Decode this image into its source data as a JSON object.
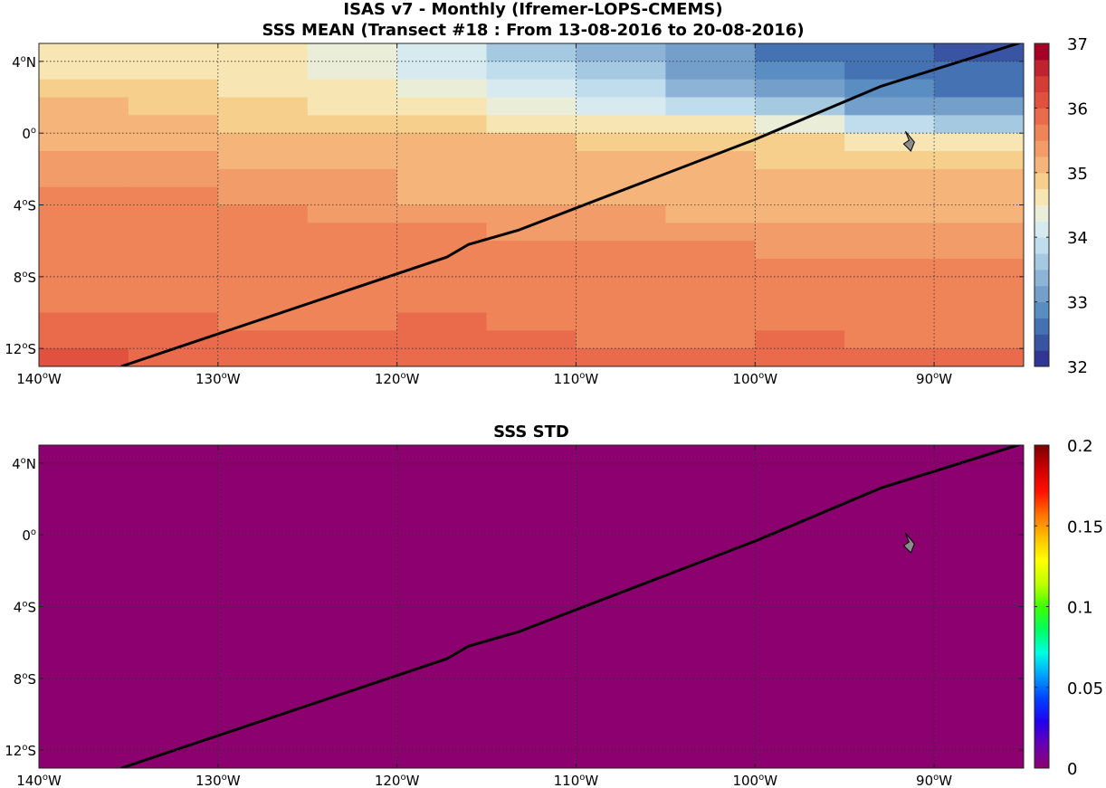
{
  "figure": {
    "title_line1": "ISAS v7 - Monthly (Ifremer-LOPS-CMEMS)"
  },
  "chart_data": [
    {
      "type": "heatmap",
      "title": "SSS MEAN (Transect #18 : From 13-08-2016 to 20-08-2016)",
      "xlabel": "",
      "ylabel": "",
      "xlim": [
        -140,
        -85
      ],
      "ylim": [
        -13,
        5
      ],
      "x_ticks": [
        {
          "value": -140,
          "deg": "140",
          "hemi": "W"
        },
        {
          "value": -130,
          "deg": "130",
          "hemi": "W"
        },
        {
          "value": -120,
          "deg": "120",
          "hemi": "W"
        },
        {
          "value": -110,
          "deg": "110",
          "hemi": "W"
        },
        {
          "value": -100,
          "deg": "100",
          "hemi": "W"
        },
        {
          "value": -90,
          "deg": "90",
          "hemi": "W"
        }
      ],
      "y_ticks": [
        {
          "value": 4,
          "deg": "4",
          "hemi": "N"
        },
        {
          "value": 0,
          "deg": "0",
          "hemi": ""
        },
        {
          "value": -4,
          "deg": "4",
          "hemi": "S"
        },
        {
          "value": -8,
          "deg": "8",
          "hemi": "S"
        },
        {
          "value": -12,
          "deg": "12",
          "hemi": "S"
        }
      ],
      "grid": true,
      "colorbar": {
        "min": 32,
        "max": 37,
        "levels": 20,
        "ticks": [
          {
            "value": 32,
            "label": "32"
          },
          {
            "value": 33,
            "label": "33"
          },
          {
            "value": 34,
            "label": "34"
          },
          {
            "value": 35,
            "label": "35"
          },
          {
            "value": 36,
            "label": "36"
          },
          {
            "value": 37,
            "label": "37"
          }
        ],
        "colors": [
          "#313695",
          "#3a54a4",
          "#4472b3",
          "#5a8dc1",
          "#749fcb",
          "#8db4d6",
          "#a6c9e2",
          "#c0dded",
          "#d7eaef",
          "#eaeed9",
          "#f7e5b3",
          "#f6cf8c",
          "#f4b47a",
          "#f29c6a",
          "#ee8458",
          "#e96b4c",
          "#e0523f",
          "#d43d35",
          "#c0232f",
          "#a50026"
        ]
      },
      "rows": [
        {
          "lat": 4.5,
          "values": [
            34.6,
            34.6,
            34.5,
            34.3,
            34.0,
            33.6,
            33.3,
            33.0,
            32.7,
            32.5,
            32.4
          ]
        },
        {
          "lat": 3.5,
          "values": [
            34.7,
            34.7,
            34.6,
            34.4,
            34.2,
            33.9,
            33.6,
            33.2,
            32.9,
            32.6,
            32.5
          ]
        },
        {
          "lat": 2.5,
          "values": [
            34.9,
            34.8,
            34.7,
            34.6,
            34.4,
            34.1,
            33.8,
            33.4,
            33.0,
            32.8,
            32.7
          ]
        },
        {
          "lat": 1.5,
          "values": [
            35.0,
            34.9,
            34.8,
            34.7,
            34.6,
            34.4,
            34.2,
            33.9,
            33.5,
            33.2,
            33.1
          ]
        },
        {
          "lat": 0.5,
          "values": [
            35.1,
            35.0,
            34.9,
            34.9,
            34.8,
            34.7,
            34.6,
            34.5,
            34.3,
            33.9,
            33.7
          ]
        },
        {
          "lat": -0.5,
          "values": [
            35.2,
            35.2,
            35.1,
            35.1,
            35.0,
            35.0,
            34.9,
            34.9,
            34.8,
            34.7,
            34.6
          ]
        },
        {
          "lat": -1.5,
          "values": [
            35.3,
            35.3,
            35.2,
            35.2,
            35.1,
            35.1,
            35.0,
            35.0,
            34.9,
            34.9,
            34.9
          ]
        },
        {
          "lat": -2.5,
          "values": [
            35.4,
            35.4,
            35.3,
            35.3,
            35.2,
            35.2,
            35.1,
            35.1,
            35.0,
            35.0,
            35.0
          ]
        },
        {
          "lat": -3.5,
          "values": [
            35.5,
            35.5,
            35.4,
            35.3,
            35.2,
            35.2,
            35.2,
            35.1,
            35.1,
            35.1,
            35.1
          ]
        },
        {
          "lat": -4.5,
          "values": [
            35.5,
            35.5,
            35.5,
            35.4,
            35.4,
            35.3,
            35.3,
            35.2,
            35.2,
            35.2,
            35.2
          ]
        },
        {
          "lat": -5.5,
          "values": [
            35.5,
            35.5,
            35.5,
            35.5,
            35.5,
            35.4,
            35.4,
            35.4,
            35.3,
            35.3,
            35.3
          ]
        },
        {
          "lat": -6.5,
          "values": [
            35.5,
            35.5,
            35.5,
            35.5,
            35.5,
            35.5,
            35.5,
            35.5,
            35.4,
            35.4,
            35.4
          ]
        },
        {
          "lat": -7.5,
          "values": [
            35.5,
            35.6,
            35.5,
            35.6,
            35.6,
            35.6,
            35.6,
            35.6,
            35.6,
            35.5,
            35.5
          ]
        },
        {
          "lat": -8.5,
          "values": [
            35.7,
            35.7,
            35.6,
            35.6,
            35.7,
            35.7,
            35.6,
            35.7,
            35.7,
            35.6,
            35.6
          ]
        },
        {
          "lat": -9.5,
          "values": [
            35.7,
            35.7,
            35.7,
            35.7,
            35.7,
            35.7,
            35.7,
            35.6,
            35.7,
            35.6,
            35.7
          ]
        },
        {
          "lat": -10.5,
          "values": [
            35.9,
            35.8,
            35.7,
            35.7,
            35.8,
            35.7,
            35.7,
            35.7,
            35.7,
            35.7,
            35.7
          ]
        },
        {
          "lat": -11.5,
          "values": [
            35.9,
            35.9,
            35.8,
            35.8,
            35.9,
            35.8,
            35.7,
            35.7,
            35.8,
            35.7,
            35.7
          ]
        },
        {
          "lat": -12.5,
          "values": [
            36.1,
            35.9,
            35.9,
            35.9,
            35.9,
            35.8,
            35.8,
            35.8,
            35.8,
            35.8,
            35.8
          ]
        }
      ],
      "transect": [
        [
          -135.4,
          -13
        ],
        [
          -117.2,
          -6.9
        ],
        [
          -116.0,
          -6.2
        ],
        [
          -113.2,
          -5.4
        ],
        [
          -100,
          -0.35
        ],
        [
          -93,
          2.6
        ],
        [
          -85,
          5.1
        ]
      ],
      "land": [
        [
          -91.6,
          0.1
        ],
        [
          -91.1,
          -0.5
        ],
        [
          -91.3,
          -1.0
        ],
        [
          -91.7,
          -0.6
        ],
        [
          -91.4,
          -0.4
        ]
      ]
    },
    {
      "type": "heatmap",
      "title": "SSS STD",
      "xlabel": "",
      "ylabel": "",
      "xlim": [
        -140,
        -85
      ],
      "ylim": [
        -13,
        5
      ],
      "x_ticks": [
        {
          "value": -140,
          "deg": "140",
          "hemi": "W"
        },
        {
          "value": -130,
          "deg": "130",
          "hemi": "W"
        },
        {
          "value": -120,
          "deg": "120",
          "hemi": "W"
        },
        {
          "value": -110,
          "deg": "110",
          "hemi": "W"
        },
        {
          "value": -100,
          "deg": "100",
          "hemi": "W"
        },
        {
          "value": -90,
          "deg": "90",
          "hemi": "W"
        }
      ],
      "y_ticks": [
        {
          "value": 4,
          "deg": "4",
          "hemi": "N"
        },
        {
          "value": 0,
          "deg": "0",
          "hemi": ""
        },
        {
          "value": -4,
          "deg": "4",
          "hemi": "S"
        },
        {
          "value": -8,
          "deg": "8",
          "hemi": "S"
        },
        {
          "value": -12,
          "deg": "12",
          "hemi": "S"
        }
      ],
      "grid": true,
      "uniform_value": 0,
      "field_color": "#8b006e",
      "colorbar": {
        "min": 0,
        "max": 0.2,
        "ticks": [
          {
            "value": 0,
            "label": "0"
          },
          {
            "value": 0.05,
            "label": "0.05"
          },
          {
            "value": 0.1,
            "label": "0.1"
          },
          {
            "value": 0.15,
            "label": "0.15"
          },
          {
            "value": 0.2,
            "label": "0.2"
          }
        ],
        "stops": [
          "#8b006e",
          "#6a00b0",
          "#2200ee",
          "#0040ff",
          "#00a0ff",
          "#00ffe0",
          "#00ff60",
          "#40ff00",
          "#c0ff00",
          "#ffff00",
          "#ffc000",
          "#ff7000",
          "#ff1000",
          "#cc0000",
          "#7a0000"
        ]
      },
      "transect": [
        [
          -135.4,
          -13
        ],
        [
          -117.2,
          -6.9
        ],
        [
          -116.0,
          -6.2
        ],
        [
          -113.2,
          -5.4
        ],
        [
          -100,
          -0.35
        ],
        [
          -93,
          2.6
        ],
        [
          -85,
          5.1
        ]
      ],
      "land": [
        [
          -91.6,
          0.1
        ],
        [
          -91.1,
          -0.5
        ],
        [
          -91.3,
          -1.0
        ],
        [
          -91.7,
          -0.6
        ],
        [
          -91.4,
          -0.4
        ]
      ]
    }
  ]
}
